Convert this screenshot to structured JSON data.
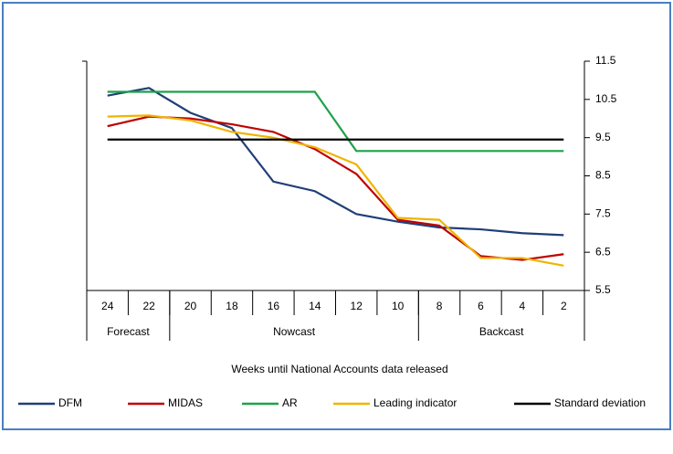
{
  "chart_data": {
    "type": "line",
    "x_label": "Weeks until National Accounts data released",
    "categories": [
      "24",
      "22",
      "20",
      "18",
      "16",
      "14",
      "12",
      "10",
      "8",
      "6",
      "4",
      "2"
    ],
    "groups": [
      {
        "label": "Forecast",
        "members": [
          "24",
          "22"
        ]
      },
      {
        "label": "Nowcast",
        "members": [
          "20",
          "18",
          "16",
          "14",
          "12",
          "10"
        ]
      },
      {
        "label": "Backcast",
        "members": [
          "8",
          "6",
          "4",
          "2"
        ]
      }
    ],
    "series": [
      {
        "name": "DFM",
        "color": "#1f3f77",
        "values": [
          10.6,
          10.8,
          10.15,
          9.75,
          8.35,
          8.1,
          7.5,
          7.3,
          7.15,
          7.1,
          7.0,
          6.95
        ]
      },
      {
        "name": "MIDAS",
        "color": "#c00000",
        "values": [
          9.8,
          10.05,
          10.0,
          9.85,
          9.65,
          9.2,
          8.55,
          7.35,
          7.2,
          6.4,
          6.3,
          6.45
        ]
      },
      {
        "name": "AR",
        "color": "#1fa14a",
        "values": [
          10.7,
          10.7,
          10.7,
          10.7,
          10.7,
          10.7,
          9.15,
          9.15,
          9.15,
          9.15,
          9.15,
          9.15
        ]
      },
      {
        "name": "Leading indicator",
        "color": "#f0b400",
        "values": [
          10.05,
          10.08,
          9.95,
          9.65,
          9.5,
          9.25,
          8.8,
          7.4,
          7.35,
          6.35,
          6.35,
          6.15
        ]
      },
      {
        "name": "Standard deviation",
        "color": "#000000",
        "values": [
          9.45,
          9.45,
          9.45,
          9.45,
          9.45,
          9.45,
          9.45,
          9.45,
          9.45,
          9.45,
          9.45,
          9.45
        ]
      }
    ],
    "ylim": [
      5.5,
      11.5
    ],
    "yticks": [
      5.5,
      6.5,
      7.5,
      8.5,
      9.5,
      10.5,
      11.5
    ],
    "y_axis_side": "right"
  }
}
